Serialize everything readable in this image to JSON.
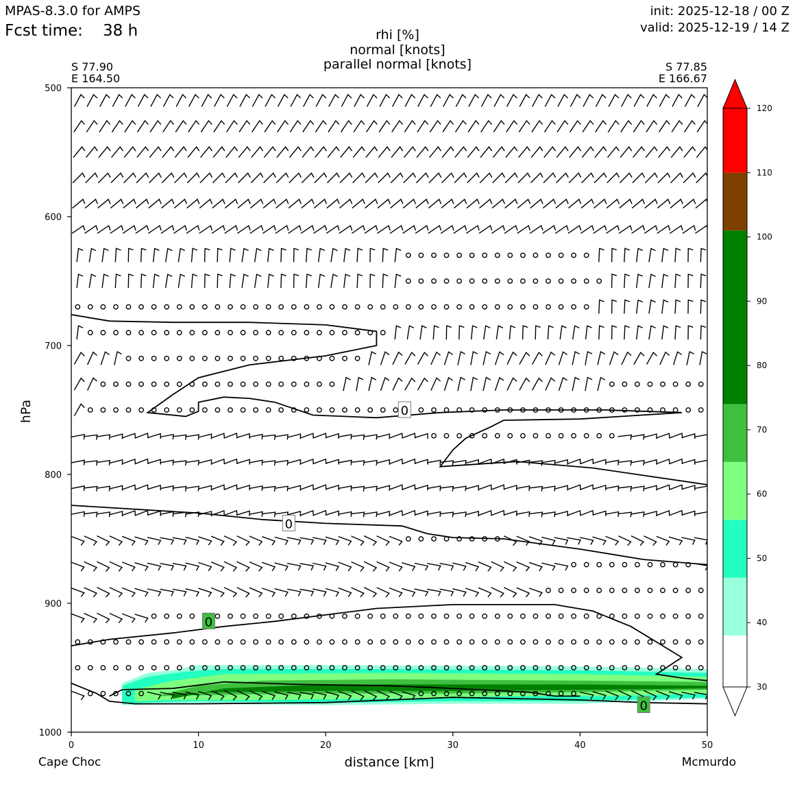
{
  "header": {
    "model": "MPAS-8.3.0 for AMPS",
    "fcst_label": "Fcst time:",
    "fcst_value": "38 h",
    "init": "init: 2025-12-18 / 00 Z",
    "valid": "valid: 2025-12-19 / 14 Z"
  },
  "endpoints": {
    "left_lat": "S 77.90",
    "left_lon": "E 164.50",
    "right_lat": "S 77.85",
    "right_lon": "E 166.67",
    "left_name": "Cape Choc",
    "right_name": "Mcmurdo"
  },
  "chart_data": {
    "type": "contourf",
    "title_lines": [
      "rhi [%]",
      "normal [knots]",
      "parallel normal [knots]"
    ],
    "xlabel": "distance [km]",
    "ylabel": "hPa",
    "xlim": [
      0,
      50
    ],
    "ylim": [
      1000,
      500
    ],
    "x_ticks": [
      0,
      10,
      20,
      30,
      40,
      50
    ],
    "y_ticks": [
      500,
      600,
      700,
      800,
      900,
      1000
    ],
    "colorbar": {
      "levels": [
        30,
        40,
        50,
        60,
        70,
        80,
        90,
        100,
        110,
        120
      ],
      "bands": [
        {
          "from": 30,
          "to": 38,
          "color": "#ffffff"
        },
        {
          "from": 38,
          "to": 47,
          "color": "#99ffdd"
        },
        {
          "from": 47,
          "to": 56,
          "color": "#22ffc0"
        },
        {
          "from": 56,
          "to": 65,
          "color": "#7fff7f"
        },
        {
          "from": 65,
          "to": 74,
          "color": "#3fbf3f"
        },
        {
          "from": 74,
          "to": 101,
          "color": "#007f00"
        },
        {
          "from": 101,
          "to": 110,
          "color": "#7f3f00"
        },
        {
          "from": 110,
          "to": 120,
          "color": "#ff0000"
        }
      ]
    },
    "contour_label": "0",
    "rhi_fields": [
      {
        "level": 40,
        "color": "#99ffdd",
        "top": [
          [
            4,
            962
          ],
          [
            6,
            954
          ],
          [
            8,
            952
          ],
          [
            10,
            948
          ],
          [
            20,
            948
          ],
          [
            40,
            949
          ],
          [
            50,
            951
          ]
        ],
        "bottom": [
          [
            50,
            974
          ],
          [
            40,
            978
          ],
          [
            30,
            978
          ],
          [
            20,
            979
          ],
          [
            10,
            978
          ],
          [
            4,
            979
          ]
        ]
      },
      {
        "level": 50,
        "color": "#22ffc0",
        "top": [
          [
            4,
            964
          ],
          [
            6,
            957
          ],
          [
            9,
            953
          ],
          [
            12,
            951
          ],
          [
            25,
            951
          ],
          [
            40,
            952
          ],
          [
            50,
            954
          ]
        ],
        "bottom": [
          [
            50,
            973
          ],
          [
            40,
            976
          ],
          [
            30,
            976
          ],
          [
            20,
            977
          ],
          [
            10,
            976
          ],
          [
            6,
            977
          ],
          [
            4,
            978
          ]
        ]
      },
      {
        "level": 60,
        "color": "#7fff7f",
        "top": [
          [
            5,
            967
          ],
          [
            8,
            960
          ],
          [
            12,
            955
          ],
          [
            25,
            954
          ],
          [
            40,
            955
          ],
          [
            50,
            957
          ]
        ],
        "bottom": [
          [
            50,
            970
          ],
          [
            42,
            972
          ],
          [
            35,
            972
          ],
          [
            25,
            974
          ],
          [
            15,
            975
          ],
          [
            8,
            975
          ],
          [
            5,
            976
          ]
        ]
      },
      {
        "level": 70,
        "color": "#3fbf3f",
        "top": [
          [
            7,
            971
          ],
          [
            10,
            964
          ],
          [
            15,
            960
          ],
          [
            25,
            959
          ],
          [
            40,
            960
          ],
          [
            50,
            961
          ]
        ],
        "bottom": [
          [
            50,
            967
          ],
          [
            40,
            969
          ],
          [
            30,
            970
          ],
          [
            20,
            970
          ],
          [
            12,
            971
          ],
          [
            7,
            972
          ]
        ]
      },
      {
        "level": 80,
        "color": "#007f00",
        "top": [
          [
            8,
            974
          ],
          [
            12,
            966
          ],
          [
            20,
            963
          ],
          [
            30,
            963
          ],
          [
            40,
            963
          ],
          [
            50,
            964
          ]
        ],
        "bottom": [
          [
            50,
            966
          ],
          [
            42,
            967
          ],
          [
            30,
            968
          ],
          [
            20,
            968
          ],
          [
            12,
            969
          ],
          [
            8,
            970
          ]
        ]
      }
    ],
    "zero_contours": [
      [
        [
          0,
          676
        ],
        [
          3,
          681
        ],
        [
          8,
          682
        ],
        [
          14,
          682
        ],
        [
          20,
          684
        ],
        [
          24,
          689
        ],
        [
          24,
          700
        ],
        [
          20,
          708
        ],
        [
          14,
          715
        ],
        [
          10,
          725
        ],
        [
          8,
          738
        ],
        [
          7,
          745
        ],
        [
          6,
          752
        ],
        [
          9,
          755
        ],
        [
          10,
          751
        ],
        [
          10,
          744
        ],
        [
          12,
          740
        ],
        [
          14,
          741
        ],
        [
          16,
          744
        ],
        [
          19,
          754
        ],
        [
          24,
          756
        ],
        [
          29,
          752
        ],
        [
          34,
          750
        ],
        [
          42,
          750
        ],
        [
          48,
          752
        ],
        [
          40,
          757
        ],
        [
          34,
          758
        ],
        [
          33,
          763
        ],
        [
          31,
          772
        ],
        [
          30,
          781
        ],
        [
          29,
          794
        ],
        [
          35,
          790
        ],
        [
          41,
          795
        ],
        [
          50,
          808
        ]
      ],
      [
        [
          0,
          824
        ],
        [
          10,
          830
        ],
        [
          15,
          835
        ],
        [
          20,
          838
        ],
        [
          26,
          840
        ],
        [
          28,
          846
        ],
        [
          30,
          849
        ],
        [
          34,
          850
        ],
        [
          40,
          858
        ],
        [
          45,
          866
        ],
        [
          50,
          870
        ]
      ],
      [
        [
          0,
          933
        ],
        [
          3,
          928
        ],
        [
          8,
          923
        ],
        [
          12,
          918
        ],
        [
          16,
          914
        ],
        [
          20,
          909
        ],
        [
          24,
          904
        ],
        [
          30,
          901
        ],
        [
          38,
          901
        ],
        [
          41,
          906
        ],
        [
          44,
          918
        ],
        [
          46,
          930
        ],
        [
          48,
          942
        ],
        [
          46,
          955
        ],
        [
          48,
          958
        ],
        [
          50,
          960
        ]
      ],
      [
        [
          0,
          962
        ],
        [
          2,
          970
        ],
        [
          3,
          976
        ],
        [
          5,
          978
        ],
        [
          10,
          978
        ],
        [
          20,
          977
        ],
        [
          30,
          973
        ],
        [
          40,
          975
        ],
        [
          45,
          977
        ],
        [
          50,
          978
        ]
      ],
      [
        [
          3,
          972
        ],
        [
          4,
          967
        ],
        [
          8,
          966
        ],
        [
          12,
          961
        ],
        [
          18,
          963
        ],
        [
          25,
          964
        ],
        [
          30,
          966
        ],
        [
          36,
          969
        ],
        [
          38,
          972
        ],
        [
          40,
          972
        ]
      ]
    ],
    "contour_labels": [
      {
        "x": 26.2,
        "p": 750
      },
      {
        "x": 17.1,
        "p": 838
      },
      {
        "x": 10.8,
        "p": 914
      },
      {
        "x": 45.0,
        "p": 979
      }
    ],
    "barb_levels": [
      510,
      530,
      550,
      570,
      590,
      610,
      630,
      650,
      670,
      690,
      710,
      730,
      750,
      770,
      790,
      810,
      830,
      850,
      870,
      890,
      910,
      930,
      950,
      970
    ],
    "calm_regions": [
      {
        "p": 630,
        "x": [
          26,
          41
        ]
      },
      {
        "p": 650,
        "x": [
          26,
          42
        ]
      },
      {
        "p": 670,
        "x": [
          0.5,
          41
        ]
      },
      {
        "p": 690,
        "x": [
          1.5,
          25
        ]
      },
      {
        "p": 710,
        "x": [
          4.5,
          23
        ]
      },
      {
        "p": 730,
        "x": [
          2.5,
          21
        ]
      },
      {
        "p": 730,
        "x": [
          42.5,
          50
        ]
      },
      {
        "p": 750,
        "x": [
          1.5,
          50
        ]
      },
      {
        "p": 770,
        "x": [
          28,
          43
        ]
      },
      {
        "p": 850,
        "x": [
          26,
          34
        ]
      },
      {
        "p": 870,
        "x": [
          39,
          49
        ]
      },
      {
        "p": 890,
        "x": [
          37,
          50
        ]
      },
      {
        "p": 910,
        "x": [
          6.5,
          50
        ]
      },
      {
        "p": 930,
        "x": [
          0.5,
          50
        ]
      },
      {
        "p": 950,
        "x": [
          0.5,
          50
        ]
      },
      {
        "p": 970,
        "x": [
          1.5,
          6
        ]
      },
      {
        "p": 970,
        "x": [
          27,
          40
        ]
      }
    ]
  }
}
